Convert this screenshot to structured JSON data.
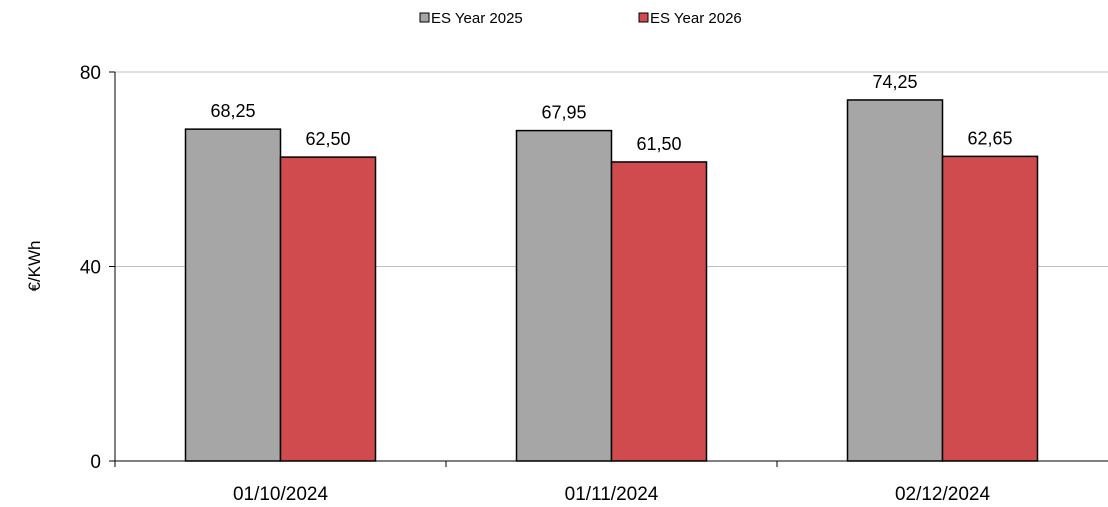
{
  "chart_data": {
    "type": "bar",
    "categories": [
      "01/10/2024",
      "01/11/2024",
      "02/12/2024"
    ],
    "series": [
      {
        "name": "ES Year 2025",
        "values": [
          68.25,
          67.95,
          74.25
        ],
        "labels": [
          "68,25",
          "67,95",
          "74,25"
        ],
        "color": "#a6a6a6"
      },
      {
        "name": "ES Year 2026",
        "values": [
          62.5,
          61.5,
          62.65
        ],
        "labels": [
          "62,50",
          "61,50",
          "62,65"
        ],
        "color": "#d04b4e"
      }
    ],
    "xlabel": "",
    "ylabel": "€/KWh",
    "ylim": [
      0,
      80
    ],
    "yticks": [
      0,
      40,
      80
    ],
    "ytick_labels": [
      "0",
      "40",
      "80"
    ],
    "grid": true,
    "legend_position": "top-center"
  }
}
